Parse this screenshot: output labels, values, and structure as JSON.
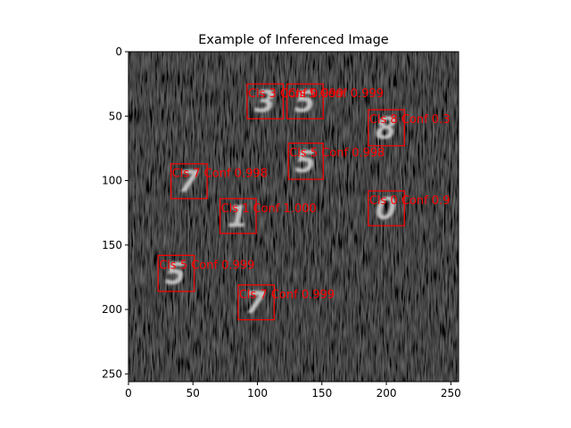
{
  "figure": {
    "title": "Example of Inferenced Image",
    "image_size": [
      256,
      256
    ],
    "x_ticks": [
      "0",
      "50",
      "100",
      "150",
      "200",
      "250"
    ],
    "y_ticks": [
      "0",
      "50",
      "100",
      "150",
      "200",
      "250"
    ],
    "box_color": "#ff0000",
    "image_background": "#0d0d0d"
  },
  "detections": [
    {
      "label": "Cls 3 Conf 0.999",
      "x1": 92,
      "y1": 25,
      "x2": 120,
      "y2": 52,
      "glyph": "3"
    },
    {
      "label": "Cls 5 Conf 0.999",
      "x1": 123,
      "y1": 25,
      "x2": 151,
      "y2": 52,
      "glyph": "5"
    },
    {
      "label": "Cls 8 Conf 0.3",
      "x1": 186,
      "y1": 45,
      "x2": 214,
      "y2": 73,
      "glyph": "8"
    },
    {
      "label": "Cls 5 Conf 0.998",
      "x1": 124,
      "y1": 71,
      "x2": 151,
      "y2": 99,
      "glyph": "5"
    },
    {
      "label": "Cls 7 Conf 0.998",
      "x1": 33,
      "y1": 87,
      "x2": 61,
      "y2": 114,
      "glyph": "7"
    },
    {
      "label": "Cls 1 Conf 1.000",
      "x1": 71,
      "y1": 114,
      "x2": 99,
      "y2": 141,
      "glyph": "1"
    },
    {
      "label": "Cls 0 Conf 0.9",
      "x1": 186,
      "y1": 108,
      "x2": 214,
      "y2": 135,
      "glyph": "0"
    },
    {
      "label": "Cls 5 Conf 0.999",
      "x1": 23,
      "y1": 158,
      "x2": 51,
      "y2": 186,
      "glyph": "5"
    },
    {
      "label": "Cls 7 Conf 0.999",
      "x1": 85,
      "y1": 181,
      "x2": 113,
      "y2": 208,
      "glyph": "7"
    }
  ]
}
